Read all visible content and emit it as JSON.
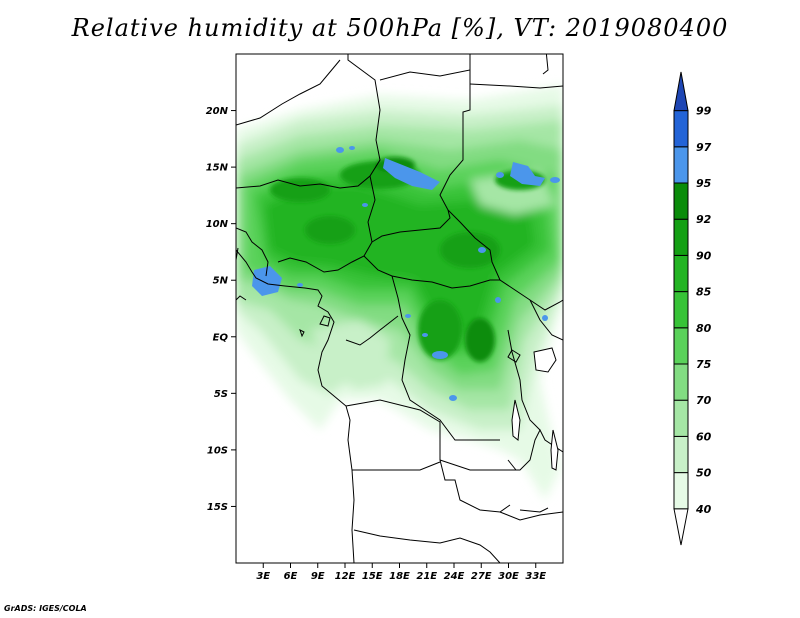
{
  "title": "Relative humidity at 500hPa [%], VT: 2019080400",
  "credit": "GrADS: IGES/COLA",
  "map": {
    "lon_range": [
      0,
      36
    ],
    "lat_range": [
      -20,
      25
    ],
    "lat_ticks": [
      {
        "value": 20,
        "label": "20N"
      },
      {
        "value": 15,
        "label": "15N"
      },
      {
        "value": 10,
        "label": "10N"
      },
      {
        "value": 5,
        "label": "5N"
      },
      {
        "value": 0,
        "label": "EQ"
      },
      {
        "value": -5,
        "label": "5S"
      },
      {
        "value": -10,
        "label": "10S"
      },
      {
        "value": -15,
        "label": "15S"
      }
    ],
    "lon_ticks": [
      {
        "value": 3,
        "label": "3E"
      },
      {
        "value": 6,
        "label": "6E"
      },
      {
        "value": 9,
        "label": "9E"
      },
      {
        "value": 12,
        "label": "12E"
      },
      {
        "value": 15,
        "label": "15E"
      },
      {
        "value": 18,
        "label": "18E"
      },
      {
        "value": 21,
        "label": "21E"
      },
      {
        "value": 24,
        "label": "24E"
      },
      {
        "value": 27,
        "label": "27E"
      },
      {
        "value": 30,
        "label": "30E"
      },
      {
        "value": 33,
        "label": "33E"
      }
    ]
  },
  "colorbar": {
    "levels": [
      "40",
      "50",
      "60",
      "70",
      "75",
      "80",
      "85",
      "90",
      "92",
      "95",
      "97",
      "99"
    ],
    "colors": [
      "#ffffff",
      "#e6fae6",
      "#c8f0c8",
      "#a5e6a5",
      "#82dc82",
      "#5ad25a",
      "#37c337",
      "#23b423",
      "#14a014",
      "#0a8c0a",
      "#4b96eb",
      "#2364d7",
      "#1e46b4"
    ]
  }
}
